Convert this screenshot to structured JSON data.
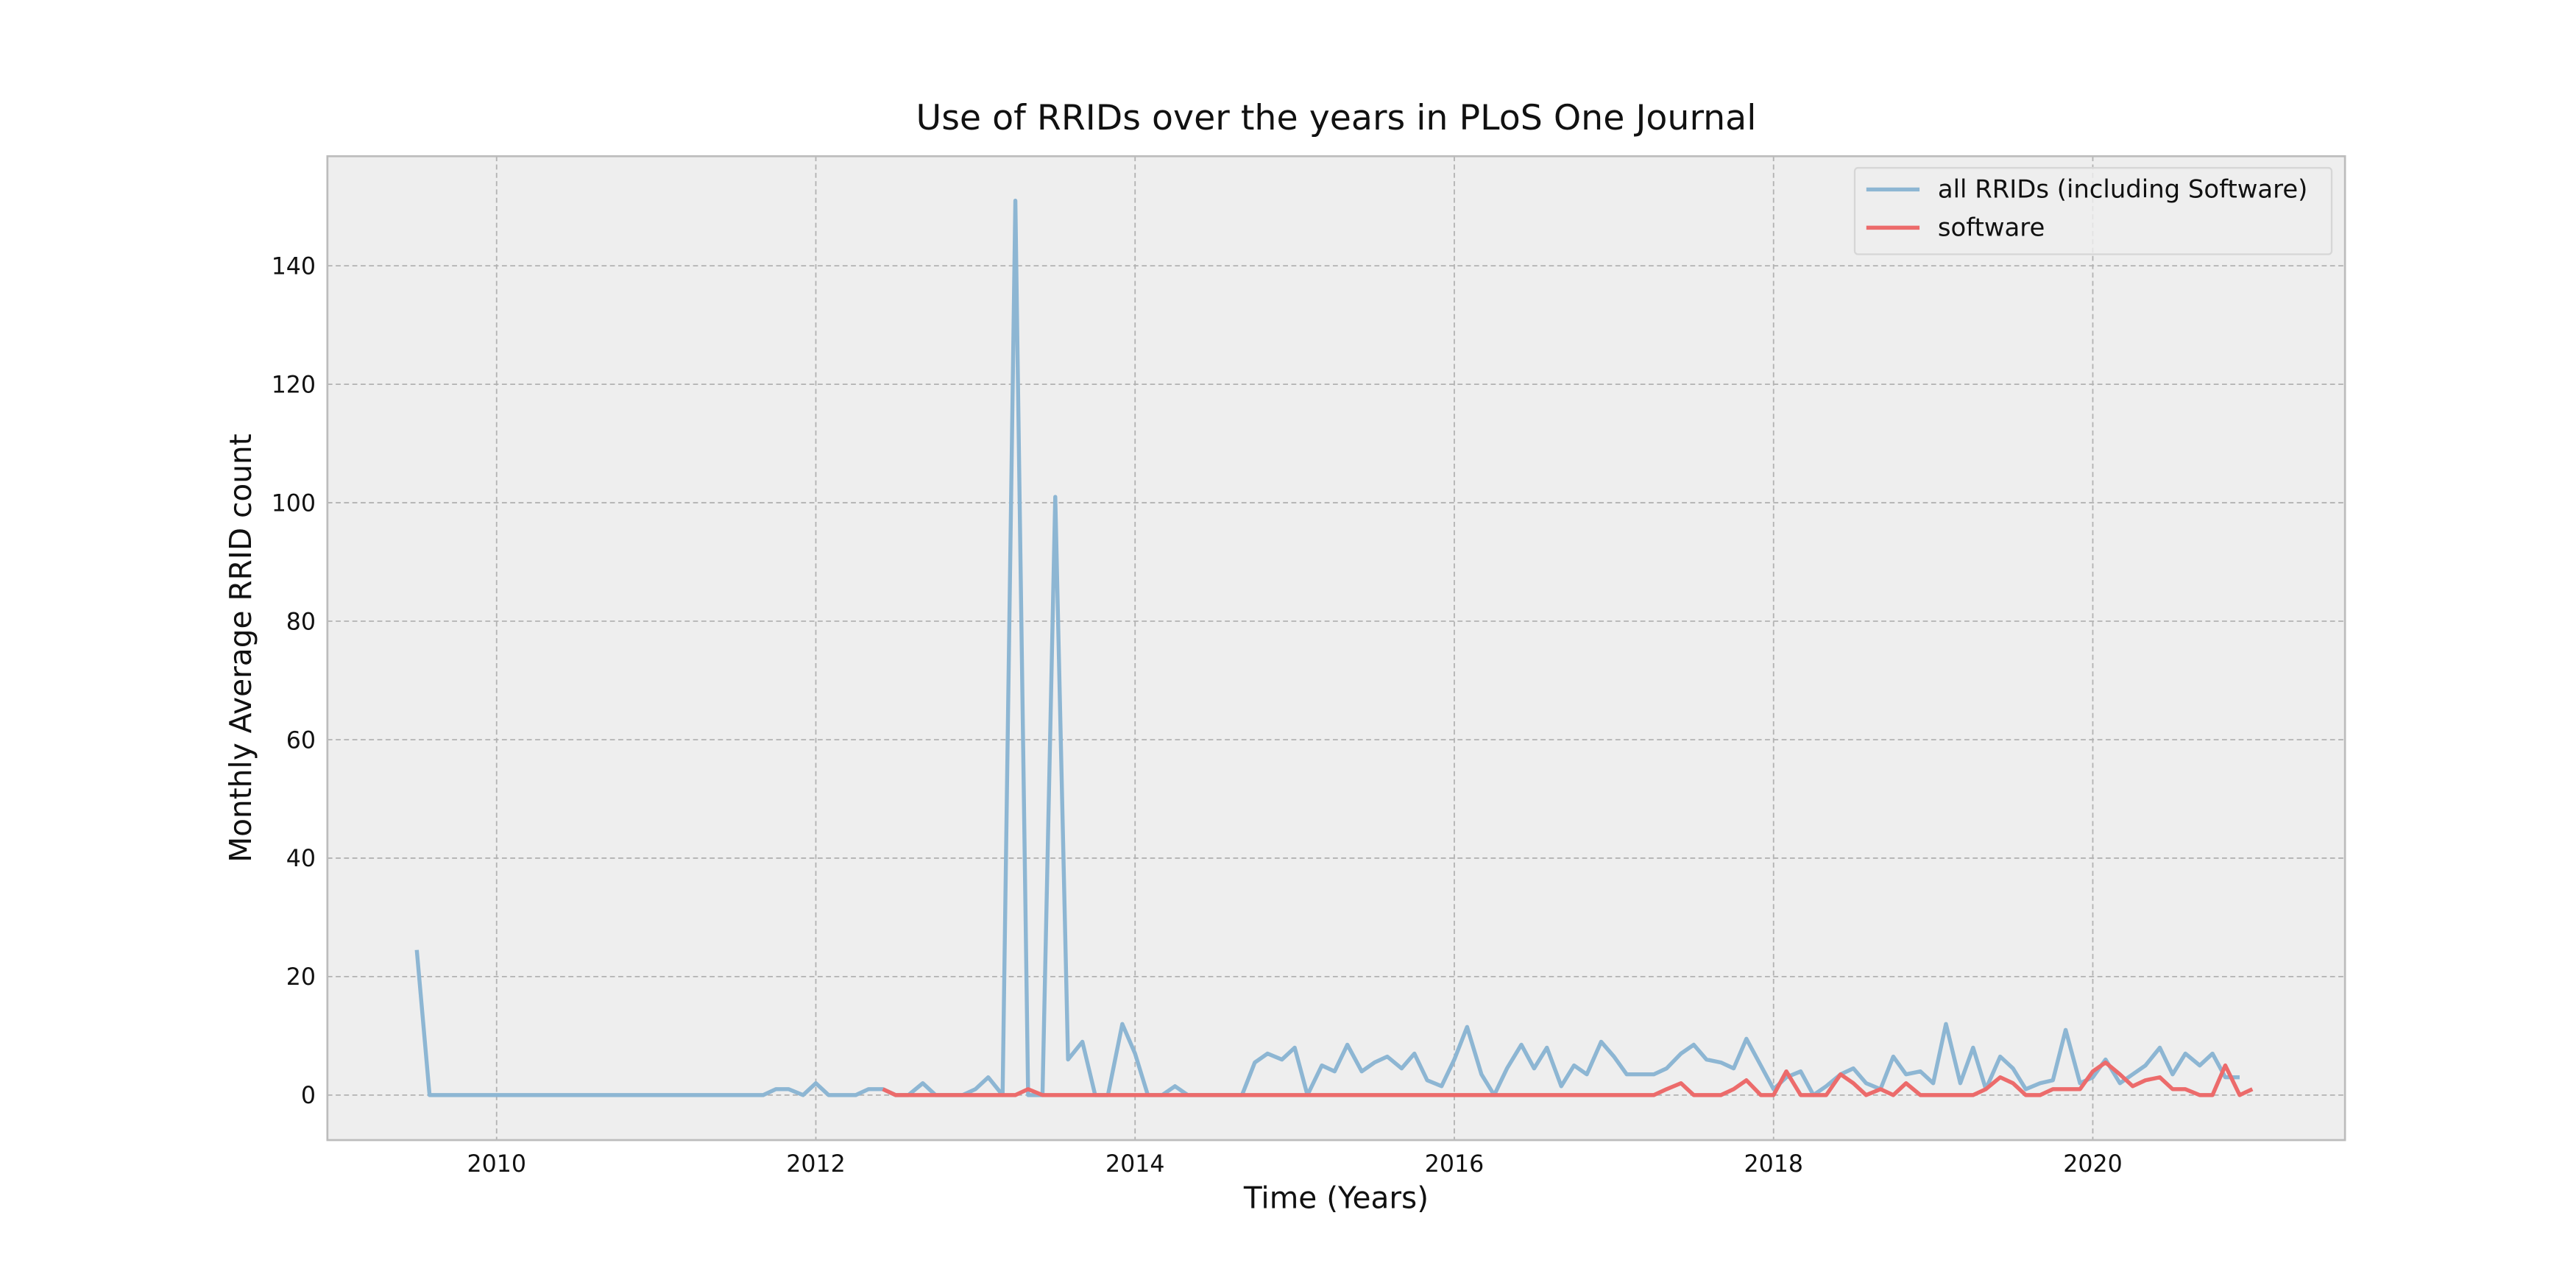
{
  "chart_data": {
    "type": "line",
    "title": "Use of RRIDs over the years in PLoS One Journal",
    "xlabel": "Time (Years)",
    "ylabel": "Monthly Average RRID count",
    "x": [
      2009.5,
      2009.58,
      2009.67,
      2009.75,
      2009.83,
      2009.92,
      2010,
      2010.08,
      2010.17,
      2010.25,
      2010.33,
      2010.42,
      2010.5,
      2010.58,
      2010.67,
      2010.75,
      2010.83,
      2010.92,
      2011,
      2011.08,
      2011.17,
      2011.25,
      2011.33,
      2011.42,
      2011.5,
      2011.58,
      2011.67,
      2011.75,
      2011.83,
      2011.92,
      2012,
      2012.08,
      2012.17,
      2012.25,
      2012.33,
      2012.42,
      2012.5,
      2012.58,
      2012.67,
      2012.75,
      2012.83,
      2012.92,
      2013,
      2013.08,
      2013.17,
      2013.25,
      2013.33,
      2013.42,
      2013.5,
      2013.58,
      2013.67,
      2013.75,
      2013.83,
      2013.92,
      2014,
      2014.08,
      2014.17,
      2014.25,
      2014.33,
      2014.42,
      2014.5,
      2014.58,
      2014.67,
      2014.75,
      2014.83,
      2014.92,
      2015,
      2015.08,
      2015.17,
      2015.25,
      2015.33,
      2015.42,
      2015.5,
      2015.58,
      2015.67,
      2015.75,
      2015.83,
      2015.92,
      2016,
      2016.08,
      2016.17,
      2016.25,
      2016.33,
      2016.42,
      2016.5,
      2016.58,
      2016.67,
      2016.75,
      2016.83,
      2016.92,
      2017,
      2017.08,
      2017.17,
      2017.25,
      2017.33,
      2017.42,
      2017.5,
      2017.58,
      2017.67,
      2017.75,
      2017.83,
      2017.92,
      2018,
      2018.08,
      2018.17,
      2018.25,
      2018.33,
      2018.42,
      2018.5,
      2018.58,
      2018.67,
      2018.75,
      2018.83,
      2018.92,
      2019,
      2019.08,
      2019.17,
      2019.25,
      2019.33,
      2019.42,
      2019.5,
      2019.58,
      2019.67,
      2019.75,
      2019.83,
      2019.92,
      2020,
      2020.08,
      2020.17,
      2020.25,
      2020.33,
      2020.42,
      2020.5,
      2020.58,
      2020.67,
      2020.75,
      2020.83,
      2020.92,
      2021
    ],
    "series": [
      {
        "name": "all RRIDs (including Software)",
        "color": "#8db6d3",
        "values": [
          24.5,
          0,
          0,
          0,
          0,
          0,
          0,
          0,
          0,
          0,
          0,
          0,
          0,
          0,
          0,
          0,
          0,
          0,
          0,
          0,
          0,
          0,
          0,
          0,
          0,
          0,
          0,
          1,
          1,
          0,
          2,
          0,
          0,
          0,
          1,
          1,
          0,
          0,
          2,
          0,
          0,
          0,
          1,
          3,
          0,
          151,
          0,
          0,
          101,
          6,
          9,
          0,
          0,
          12,
          7,
          0,
          0,
          1.5,
          0,
          0,
          0,
          0,
          0,
          5.5,
          7,
          6,
          8,
          0,
          5,
          4,
          8.5,
          4,
          5.5,
          6.5,
          4.5,
          7,
          2.5,
          1.5,
          6,
          11.5,
          3.5,
          0,
          4.5,
          8.5,
          4.5,
          8,
          1.5,
          5,
          3.5,
          9,
          6.5,
          3.5,
          3.5,
          3.5,
          4.5,
          7,
          8.5,
          6,
          5.5,
          4.5,
          9.5,
          5,
          1,
          3,
          4,
          0,
          1.5,
          3.5,
          4.5,
          2,
          1,
          6.5,
          3.5,
          4,
          2,
          12,
          2,
          8,
          1,
          6.5,
          4.5,
          1,
          2,
          2.5,
          11,
          2,
          3,
          6,
          2,
          3.5,
          5,
          8,
          3.5,
          7,
          5,
          7,
          3,
          3,
          null
        ]
      },
      {
        "name": "software",
        "color": "#ec6b6b",
        "values": [
          null,
          null,
          null,
          null,
          null,
          null,
          null,
          null,
          null,
          null,
          null,
          null,
          null,
          null,
          null,
          null,
          null,
          null,
          null,
          null,
          null,
          null,
          null,
          null,
          null,
          null,
          null,
          null,
          null,
          null,
          null,
          null,
          null,
          null,
          null,
          1,
          0,
          0,
          0,
          0,
          0,
          0,
          0,
          0,
          0,
          0,
          1,
          0,
          0,
          0,
          0,
          0,
          0,
          0,
          0,
          0,
          0,
          0,
          0,
          0,
          0,
          0,
          0,
          0,
          0,
          0,
          0,
          0,
          0,
          0,
          0,
          0,
          0,
          0,
          0,
          0,
          0,
          0,
          0,
          0,
          0,
          0,
          0,
          0,
          0,
          0,
          0,
          0,
          0,
          0,
          0,
          0,
          0,
          0,
          1,
          2,
          0,
          0,
          0,
          1,
          2.5,
          0,
          0,
          4,
          0,
          0,
          0,
          3.5,
          2,
          0,
          1,
          0,
          2,
          0,
          0,
          0,
          0,
          0,
          1,
          3,
          2,
          0,
          0,
          1,
          1,
          1,
          4,
          5.5,
          3.5,
          1.5,
          2.5,
          3,
          1,
          1,
          0,
          0,
          5,
          0,
          1
        ]
      }
    ],
    "xlim": [
      2008.94,
      2021.58
    ],
    "ylim": [
      -7.6,
      158.5
    ],
    "xticks": [
      2010,
      2012,
      2014,
      2016,
      2018,
      2020
    ],
    "yticks": [
      0,
      20,
      40,
      60,
      80,
      100,
      120,
      140
    ],
    "grid": true,
    "legend": "upper right"
  }
}
